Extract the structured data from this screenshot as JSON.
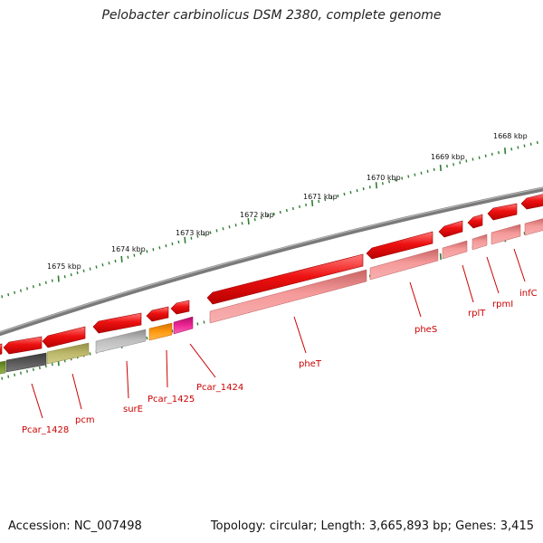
{
  "title": "Pelobacter carbinolicus DSM 2380, complete genome",
  "footer": {
    "accession": "Accession: NC_007498",
    "summary": "Topology: circular; Length: 3,665,893 bp; Genes: 3,415"
  },
  "scale_labels": [
    "1675 kbp",
    "1674 kbp",
    "1673 kbp",
    "1672 kbp",
    "1671 kbp",
    "1670 kbp",
    "1669 kbp",
    "1668 kbp"
  ],
  "gene_labels": [
    "Pcar_1428",
    "pcm",
    "surE",
    "Pcar_1425",
    "Pcar_1424",
    "pheT",
    "pheS",
    "rplT",
    "rpmI",
    "infC"
  ],
  "colors": {
    "backbone": "#808080",
    "cds": "#ee1111",
    "label": "#cc0000",
    "tick": "#2e7d32",
    "feature_pink": "#f08a8a",
    "feature_gray": "#aaaaaa",
    "feature_dark": "#555555",
    "feature_olive": "#b5b062",
    "feature_orange": "#f5960f",
    "feature_magenta": "#e7208f",
    "feature_green": "#6f8f2a"
  }
}
